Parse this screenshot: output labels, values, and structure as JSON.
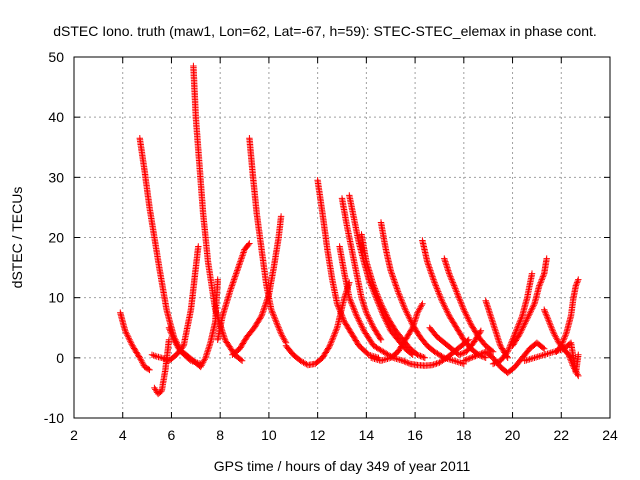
{
  "chart_data": {
    "type": "scatter",
    "title": "dSTEC Iono. truth (maw1, Lon=62, Lat=-67, h=59): STEC-STEC_elemax in phase cont.",
    "xlabel": "GPS time / hours of day 349 of year 2011",
    "ylabel": "dSTEC  / TECUs",
    "xlim": [
      2,
      24
    ],
    "ylim": [
      -10,
      50
    ],
    "xticks": [
      2,
      4,
      6,
      8,
      10,
      12,
      14,
      16,
      18,
      20,
      22,
      24
    ],
    "yticks": [
      -10,
      0,
      10,
      20,
      30,
      40,
      50
    ],
    "grid": true,
    "marker": "plus",
    "series_color": "#ff0000",
    "arcs": [
      {
        "x": [
          3.9,
          4.1,
          4.4,
          4.7,
          4.9,
          5.1
        ],
        "y": [
          7.5,
          4.5,
          2.0,
          0.0,
          -1.5,
          -2.0
        ]
      },
      {
        "x": [
          5.2,
          5.4,
          5.6,
          5.9,
          6.2,
          6.5,
          6.8,
          7.1
        ],
        "y": [
          0.5,
          0.2,
          0.0,
          -0.5,
          0.5,
          2.0,
          8.0,
          18.5
        ]
      },
      {
        "x": [
          5.3,
          5.45,
          5.6,
          5.75,
          5.9
        ],
        "y": [
          -5.0,
          -6.0,
          -5.5,
          -2.0,
          3.0
        ]
      },
      {
        "x": [
          4.7,
          4.9,
          5.1,
          5.3,
          5.5,
          5.8,
          6.1,
          6.4,
          6.8,
          7.2
        ],
        "y": [
          36.5,
          31.0,
          25.0,
          20.0,
          15.0,
          8.0,
          3.5,
          1.0,
          -0.5,
          -1.0
        ]
      },
      {
        "x": [
          5.9,
          6.1,
          6.3,
          6.6,
          6.9,
          7.2,
          7.4,
          7.6,
          7.8,
          7.9
        ],
        "y": [
          5.0,
          3.0,
          1.5,
          0.5,
          -0.5,
          -1.5,
          0.0,
          2.5,
          6.0,
          13.0
        ]
      },
      {
        "x": [
          6.9,
          7.0,
          7.15,
          7.3,
          7.5,
          7.8,
          8.2,
          8.6,
          8.9
        ],
        "y": [
          48.5,
          40.0,
          32.0,
          24.0,
          16.0,
          8.0,
          3.0,
          0.5,
          -0.5
        ]
      },
      {
        "x": [
          7.9,
          8.1,
          8.4,
          8.7,
          9.0,
          9.2
        ],
        "y": [
          3.0,
          7.0,
          11.0,
          14.5,
          18.0,
          19.0
        ]
      },
      {
        "x": [
          9.2,
          9.35,
          9.5,
          9.7,
          9.9,
          10.1,
          10.3,
          10.5,
          10.7
        ],
        "y": [
          36.5,
          30.0,
          24.0,
          18.0,
          12.0,
          8.0,
          6.0,
          4.0,
          2.5
        ]
      },
      {
        "x": [
          8.5,
          8.8,
          9.1,
          9.4,
          9.7,
          10.0,
          10.2,
          10.4,
          10.5
        ],
        "y": [
          0.5,
          1.5,
          3.5,
          5.0,
          7.0,
          10.5,
          15.0,
          20.0,
          23.5
        ]
      },
      {
        "x": [
          10.7,
          11.0,
          11.3,
          11.6,
          11.9,
          12.2,
          12.5,
          12.8,
          13.1,
          13.3
        ],
        "y": [
          2.0,
          0.5,
          -0.5,
          -1.2,
          -1.0,
          0.0,
          2.0,
          5.0,
          10.0,
          12.5
        ]
      },
      {
        "x": [
          12.0,
          12.2,
          12.4,
          12.6,
          12.8,
          13.1,
          13.4,
          13.7,
          14.1,
          14.5
        ],
        "y": [
          29.5,
          24.0,
          18.0,
          13.0,
          9.0,
          6.0,
          4.0,
          2.0,
          0.5,
          0.0
        ]
      },
      {
        "x": [
          12.9,
          13.1,
          13.3,
          13.6,
          13.9,
          14.3,
          14.7,
          15.1,
          15.5
        ],
        "y": [
          18.5,
          14.0,
          10.0,
          7.0,
          4.5,
          2.0,
          1.0,
          0.0,
          -0.5
        ]
      },
      {
        "x": [
          13.0,
          13.2,
          13.4,
          13.6,
          13.8,
          14.0,
          14.3,
          14.6
        ],
        "y": [
          26.5,
          22.0,
          18.0,
          14.0,
          10.0,
          7.5,
          5.0,
          3.0
        ]
      },
      {
        "x": [
          13.3,
          13.5,
          13.7,
          13.9,
          14.1,
          14.4,
          14.7,
          15.0,
          15.3,
          15.6,
          15.9
        ],
        "y": [
          27.0,
          23.0,
          19.0,
          16.0,
          13.0,
          10.0,
          7.0,
          4.5,
          3.0,
          1.5,
          0.5
        ]
      },
      {
        "x": [
          13.8,
          14.0,
          14.3,
          14.6,
          14.9,
          15.2,
          15.5,
          15.8,
          16.1,
          16.4
        ],
        "y": [
          20.5,
          16.0,
          12.0,
          9.0,
          6.5,
          4.5,
          3.0,
          1.5,
          0.5,
          0.0
        ]
      },
      {
        "x": [
          14.6,
          14.8,
          15.0,
          15.3,
          15.6,
          15.9,
          16.2,
          16.5,
          16.8,
          17.2,
          17.6,
          18.0
        ],
        "y": [
          22.5,
          18.0,
          14.5,
          11.0,
          8.0,
          5.5,
          3.5,
          2.0,
          1.0,
          0.0,
          -0.5,
          -1.0
        ]
      },
      {
        "x": [
          14.2,
          14.6,
          15.0,
          15.3,
          15.6,
          15.9,
          16.1,
          16.3
        ],
        "y": [
          0.0,
          -0.5,
          0.0,
          1.0,
          3.0,
          5.0,
          7.5,
          9.0
        ]
      },
      {
        "x": [
          15.5,
          15.8,
          16.1,
          16.4,
          16.7,
          17.0,
          17.3,
          17.6,
          17.9,
          18.2
        ],
        "y": [
          -0.5,
          -1.0,
          -1.2,
          -1.3,
          -1.2,
          -0.8,
          0.0,
          1.0,
          2.0,
          3.0
        ]
      },
      {
        "x": [
          16.3,
          16.5,
          16.8,
          17.1,
          17.4,
          17.7,
          18.0,
          18.3,
          18.6,
          18.9
        ],
        "y": [
          19.5,
          16.0,
          12.5,
          9.5,
          7.0,
          5.0,
          3.0,
          1.5,
          0.5,
          0.0
        ]
      },
      {
        "x": [
          16.6,
          16.9,
          17.2,
          17.5,
          17.8,
          18.1,
          18.4,
          18.7
        ],
        "y": [
          5.0,
          3.5,
          2.5,
          1.5,
          0.5,
          1.0,
          2.5,
          4.5
        ]
      },
      {
        "x": [
          17.2,
          17.4,
          17.7,
          18.0,
          18.3,
          18.6,
          18.9,
          19.2
        ],
        "y": [
          16.5,
          14.0,
          11.0,
          8.0,
          5.5,
          3.5,
          2.0,
          1.0
        ]
      },
      {
        "x": [
          18.0,
          18.3,
          18.6,
          18.9,
          19.2,
          19.5,
          19.8,
          20.1,
          20.4,
          20.7,
          21.0,
          21.3
        ],
        "y": [
          -0.5,
          0.0,
          0.5,
          1.0,
          0.0,
          -1.5,
          -2.5,
          -1.5,
          0.0,
          1.5,
          2.5,
          1.5
        ]
      },
      {
        "x": [
          18.9,
          19.1,
          19.3,
          19.5,
          19.8
        ],
        "y": [
          9.5,
          7.0,
          4.5,
          2.0,
          0.0
        ]
      },
      {
        "x": [
          19.2,
          19.5,
          19.8,
          20.1,
          20.4,
          20.6,
          20.8
        ],
        "y": [
          -1.0,
          -0.5,
          1.0,
          4.0,
          7.0,
          10.0,
          14.0
        ]
      },
      {
        "x": [
          20.0,
          20.3,
          20.6,
          20.9,
          21.1,
          21.3,
          21.4
        ],
        "y": [
          2.0,
          4.0,
          6.5,
          9.0,
          12.0,
          14.0,
          16.5
        ]
      },
      {
        "x": [
          21.3,
          21.5,
          21.7,
          21.9,
          22.1,
          22.3,
          22.5,
          22.7
        ],
        "y": [
          8.0,
          6.0,
          4.0,
          2.5,
          1.5,
          0.5,
          -1.5,
          -3.0
        ]
      },
      {
        "x": [
          21.8,
          22.0,
          22.2,
          22.4,
          22.5,
          22.6,
          22.7
        ],
        "y": [
          1.0,
          2.0,
          4.0,
          7.0,
          10.0,
          12.0,
          13.0
        ]
      },
      {
        "x": [
          20.5,
          20.9,
          21.3,
          21.7,
          22.1,
          22.4,
          22.6,
          22.7
        ],
        "y": [
          -0.5,
          0.0,
          0.5,
          1.0,
          1.5,
          2.5,
          -2.5,
          0.5
        ]
      }
    ]
  }
}
